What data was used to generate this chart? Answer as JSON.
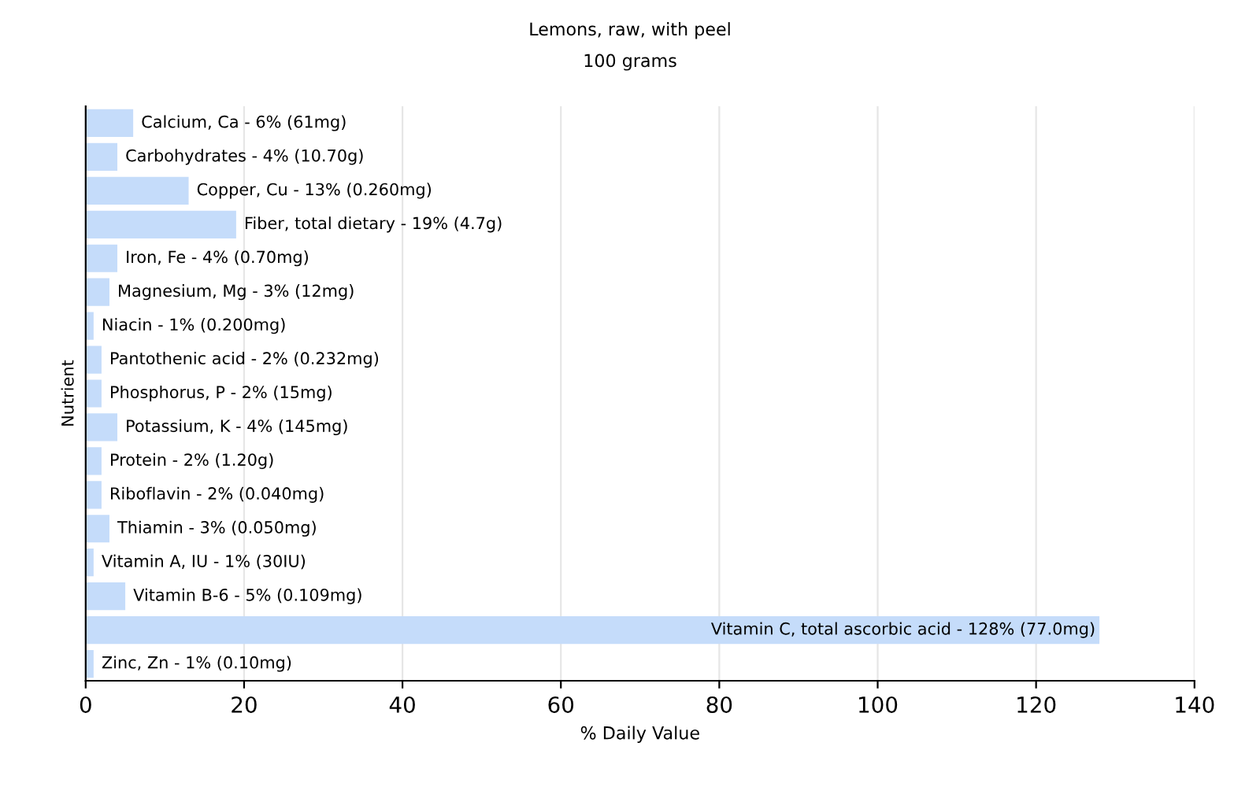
{
  "chart_data": {
    "type": "bar",
    "orientation": "horizontal",
    "title": "Lemons, raw, with peel",
    "subtitle": "100 grams",
    "xlabel": "% Daily Value",
    "ylabel": "Nutrient",
    "categories": [
      null,
      null,
      null,
      null,
      null,
      null,
      null,
      null,
      null,
      null,
      null,
      null,
      null,
      null,
      null,
      null,
      null
    ],
    "values": [
      6,
      4,
      13,
      19,
      4,
      3,
      1,
      2,
      2,
      4,
      2,
      2,
      3,
      1,
      5,
      128,
      1
    ],
    "annotations": [
      {
        "text": "Calcium, Ca - 6% (61mg)",
        "x": 6
      },
      {
        "text": "Carbohydrates - 4% (10.70g)",
        "x": 4
      },
      {
        "text": "Copper, Cu - 13% (0.260mg)",
        "x": 13
      },
      {
        "text": "Fiber, total dietary - 19% (4.7g)",
        "x": 19
      },
      {
        "text": "Iron, Fe - 4% (0.70mg)",
        "x": 4
      },
      {
        "text": "Magnesium, Mg - 3% (12mg)",
        "x": 3
      },
      {
        "text": "Niacin - 1% (0.200mg)",
        "x": 1
      },
      {
        "text": "Pantothenic acid - 2% (0.232mg)",
        "x": 2
      },
      {
        "text": "Phosphorus, P - 2% (15mg)",
        "x": 2
      },
      {
        "text": "Potassium, K - 4% (145mg)",
        "x": 4
      },
      {
        "text": "Protein - 2% (1.20g)",
        "x": 2
      },
      {
        "text": "Riboflavin - 2% (0.040mg)",
        "x": 2
      },
      {
        "text": "Thiamin - 3% (0.050mg)",
        "x": 3
      },
      {
        "text": "Vitamin A, IU - 1% (30IU)",
        "x": 1
      },
      {
        "text": "Vitamin B-6 - 5% (0.109mg)",
        "x": 5
      },
      {
        "text": "Vitamin C, total ascorbic acid - 128% (77.0mg)",
        "x": 128
      },
      {
        "text": "Zinc, Zn - 1% (0.10mg)",
        "x": 1
      }
    ],
    "color": "#c5dcfa",
    "xlim": [
      0,
      140
    ],
    "xticks": [
      0,
      20,
      40,
      60,
      80,
      100,
      120,
      140
    ],
    "grid": "x",
    "tick_labels": "x",
    "legend": false
  }
}
